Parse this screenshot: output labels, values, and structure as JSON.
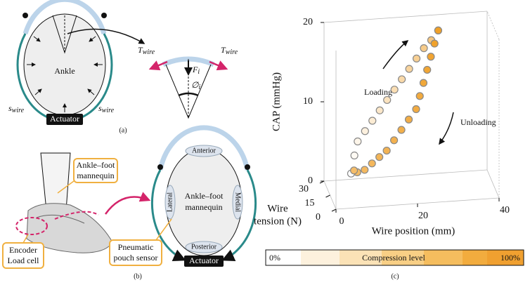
{
  "panel_a": {
    "center_label": "Ankle",
    "actuator": "Actuator",
    "tension_symbol": {
      "symbol": "T",
      "sub": "wire"
    },
    "stroke_symbol": {
      "symbol": "s",
      "sub": "wire"
    },
    "force_symbol": {
      "symbol": "F",
      "sub": "i"
    },
    "angle_symbol": {
      "symbol": "∅",
      "sub": "i"
    },
    "caption": "(a)"
  },
  "panel_b": {
    "shoe_label": [
      "Ankle–foot",
      "mannequin"
    ],
    "encoder_label": [
      "Encoder",
      "Load cell"
    ],
    "cross_section_label": [
      "Ankle–foot",
      "mannequin"
    ],
    "anterior": "Anterior",
    "posterior": "Posterior",
    "lateral": "Lateral",
    "medial": "Medial",
    "sensor_label": [
      "Pneumatic",
      "pouch sensor"
    ],
    "actuator": "Actuator",
    "caption": "(b)"
  },
  "chart_data": {
    "type": "scatter3d",
    "zlabel": "CAP (mmHg)",
    "ylabel": [
      "Wire",
      "tension (N)"
    ],
    "xlabel": "Wire position (mm)",
    "zlim": [
      0,
      20
    ],
    "zticks": [
      0,
      10,
      20
    ],
    "ylim": [
      0,
      30
    ],
    "yticks": [
      0,
      15,
      30
    ],
    "xlim": [
      0,
      40
    ],
    "xticks": [
      0,
      20,
      40
    ],
    "annotations": [
      "Loading",
      "Unloading"
    ],
    "series": [
      {
        "name": "Loading",
        "x": [
          4,
          5,
          6,
          8,
          10,
          12,
          14,
          16,
          18,
          20,
          22,
          24,
          26,
          28
        ],
        "y": [
          3,
          5,
          7,
          9,
          11,
          13,
          15,
          17,
          19,
          21,
          23,
          25,
          27,
          30
        ],
        "z": [
          4,
          6,
          7.5,
          8.5,
          9.5,
          10.5,
          11.5,
          12.5,
          13.5,
          14.5,
          15.5,
          16.5,
          17.2,
          18
        ],
        "compression": [
          0,
          5,
          10,
          15,
          20,
          25,
          30,
          35,
          40,
          45,
          50,
          55,
          60,
          65
        ]
      },
      {
        "name": "Unloading",
        "x": [
          28,
          27,
          26,
          25,
          24,
          23,
          22,
          20,
          18,
          16,
          14,
          12,
          10,
          8,
          6,
          5
        ],
        "y": [
          30,
          29,
          28,
          27,
          26,
          25,
          24,
          22,
          20,
          18,
          16,
          14,
          12,
          10,
          8,
          6
        ],
        "z": [
          18,
          16.5,
          15,
          13.5,
          12,
          10.5,
          9,
          8,
          7,
          6,
          5,
          4.5,
          4,
          3.5,
          3.5,
          4
        ],
        "compression": [
          100,
          98,
          96,
          94,
          92,
          90,
          88,
          86,
          84,
          82,
          80,
          78,
          76,
          74,
          72,
          70
        ]
      }
    ],
    "colorbar": {
      "min_label": "0%",
      "title": "Compression level",
      "max_label": "100%"
    },
    "caption": "(c)"
  }
}
